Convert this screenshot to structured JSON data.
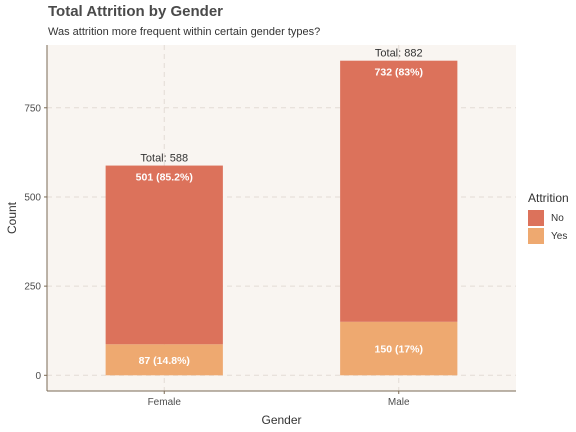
{
  "title": "Total Attrition by Gender",
  "subtitle": "Was attrition more frequent within certain gender types?",
  "colors": {
    "no": "#dc725b",
    "yes": "#eea970",
    "panel": "#f9f5f1",
    "grid": "#e3dcd5",
    "axis": "#7a6a55"
  },
  "chart_data": {
    "type": "bar",
    "stacked": true,
    "categories": [
      "Female",
      "Male"
    ],
    "series": [
      {
        "name": "No",
        "values": [
          501,
          732
        ],
        "labels": [
          "501 (85.2%)",
          "732 (83%)"
        ]
      },
      {
        "name": "Yes",
        "values": [
          87,
          150
        ],
        "labels": [
          "87 (14.8%)",
          "150 (17%)"
        ]
      }
    ],
    "totals": [
      588,
      882
    ],
    "total_labels": [
      "Total: 588",
      "Total: 882"
    ],
    "xlabel": "Gender",
    "ylabel": "Count",
    "yticks": [
      0,
      250,
      500,
      750
    ],
    "ylim": [
      -44,
      926
    ],
    "grid": true,
    "legend": {
      "title": "Attrition",
      "position": "right",
      "entries": [
        "No",
        "Yes"
      ]
    }
  }
}
